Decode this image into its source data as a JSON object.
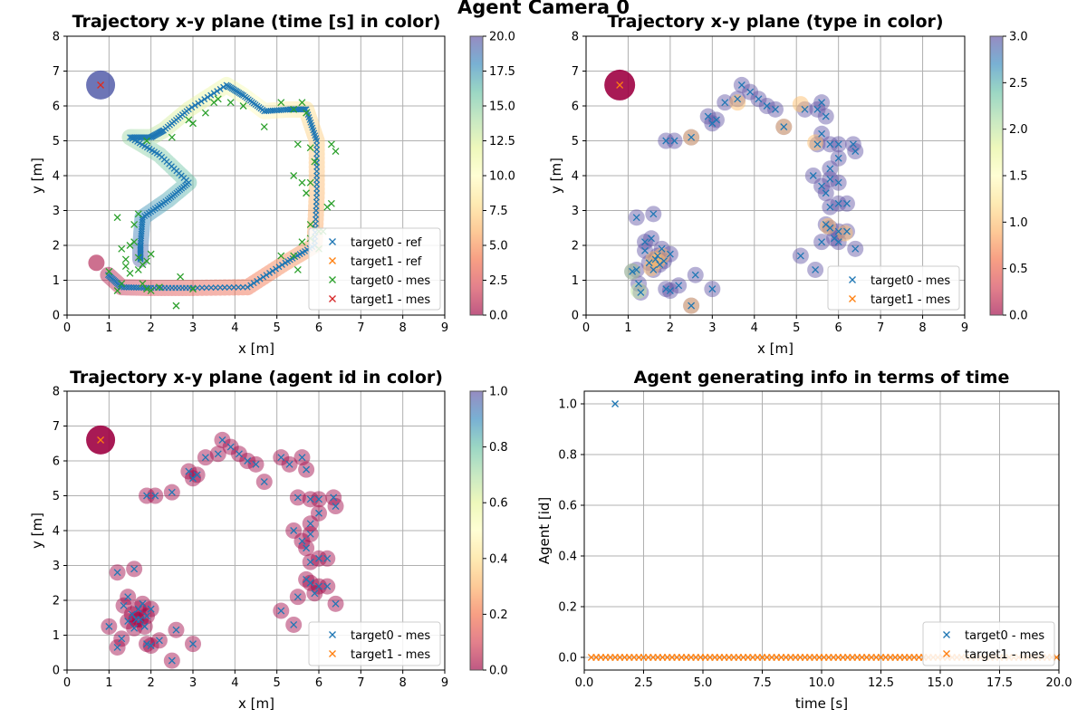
{
  "figure": {
    "title": "Agent Camera 0"
  },
  "colors": {
    "target0": "#1f77b4",
    "target1": "#ff7f0e",
    "target0_mes_p1": "#2ca02c",
    "target1_mes_p1": "#d62728",
    "grid": "#b0b0b0",
    "colormap": "Spectral"
  },
  "chart_data": [
    {
      "id": "p1",
      "type": "scatter",
      "title": "Trajectory x-y plane  (time [s] in color)",
      "xlabel": "x [m]",
      "ylabel": "y [m]",
      "xlim": [
        0,
        9
      ],
      "ylim": [
        0,
        8
      ],
      "xticks": [
        "0",
        "1",
        "2",
        "3",
        "4",
        "5",
        "6",
        "7",
        "8",
        "9"
      ],
      "yticks": [
        "0",
        "1",
        "2",
        "3",
        "4",
        "5",
        "6",
        "7",
        "8"
      ],
      "grid": true,
      "legend_position": "bottom-right",
      "legend": [
        "target0 - ref",
        "target1 - ref",
        "target0 - mes",
        "target1 - mes"
      ],
      "colorbar": {
        "min": 0,
        "max": 20,
        "ticks": [
          "0.0",
          "2.5",
          "5.0",
          "7.5",
          "10.0",
          "12.5",
          "15.0",
          "17.5",
          "20.0"
        ]
      },
      "ref_path_target0": [
        [
          0.98,
          1.15
        ],
        [
          1.3,
          0.8
        ],
        [
          2.0,
          0.78
        ],
        [
          3.0,
          0.78
        ],
        [
          4.3,
          0.8
        ],
        [
          5.2,
          1.5
        ],
        [
          5.9,
          2.0
        ],
        [
          5.95,
          3.5
        ],
        [
          5.95,
          5.0
        ],
        [
          5.7,
          5.9
        ],
        [
          5.3,
          5.9
        ],
        [
          4.7,
          5.85
        ],
        [
          4.2,
          6.3
        ],
        [
          3.8,
          6.6
        ],
        [
          2.9,
          5.9
        ],
        [
          2.3,
          5.3
        ],
        [
          2.0,
          5.1
        ],
        [
          1.5,
          5.1
        ],
        [
          2.2,
          4.6
        ],
        [
          2.9,
          3.8
        ],
        [
          2.4,
          3.3
        ],
        [
          1.8,
          2.8
        ],
        [
          1.75,
          2.0
        ],
        [
          1.75,
          1.6
        ]
      ],
      "target1_ref": {
        "x": 0.8,
        "y": 6.6
      },
      "target0_mes": [
        [
          1.2,
          2.8
        ],
        [
          1.2,
          0.7
        ],
        [
          1.0,
          1.25
        ],
        [
          1.3,
          0.9
        ],
        [
          1.4,
          1.4
        ],
        [
          1.4,
          1.6
        ],
        [
          1.5,
          2.0
        ],
        [
          1.5,
          1.2
        ],
        [
          1.6,
          2.1
        ],
        [
          1.7,
          1.3
        ],
        [
          1.7,
          1.65
        ],
        [
          1.8,
          1.45
        ],
        [
          1.8,
          0.9
        ],
        [
          1.9,
          1.55
        ],
        [
          1.9,
          0.75
        ],
        [
          2.0,
          1.75
        ],
        [
          2.0,
          0.7
        ],
        [
          2.2,
          0.8
        ],
        [
          2.6,
          0.27
        ],
        [
          2.7,
          1.1
        ],
        [
          3.0,
          0.75
        ],
        [
          2.5,
          5.1
        ],
        [
          1.9,
          5.0
        ],
        [
          2.9,
          5.6
        ],
        [
          3.0,
          5.5
        ],
        [
          3.3,
          5.8
        ],
        [
          3.5,
          6.1
        ],
        [
          3.6,
          6.2
        ],
        [
          3.9,
          6.1
        ],
        [
          4.2,
          6.0
        ],
        [
          4.7,
          5.4
        ],
        [
          5.1,
          6.1
        ],
        [
          5.4,
          5.9
        ],
        [
          5.6,
          6.1
        ],
        [
          5.7,
          5.8
        ],
        [
          5.5,
          4.9
        ],
        [
          5.8,
          4.8
        ],
        [
          5.4,
          4.0
        ],
        [
          5.6,
          3.8
        ],
        [
          5.8,
          3.8
        ],
        [
          5.9,
          4.4
        ],
        [
          5.7,
          3.5
        ],
        [
          5.8,
          2.6
        ],
        [
          5.8,
          2.2
        ],
        [
          5.6,
          2.1
        ],
        [
          5.4,
          1.7
        ],
        [
          5.5,
          1.3
        ],
        [
          5.1,
          1.7
        ],
        [
          6.0,
          1.9
        ],
        [
          6.1,
          2.4
        ],
        [
          6.2,
          3.1
        ],
        [
          6.3,
          4.9
        ],
        [
          6.4,
          4.7
        ],
        [
          6.3,
          3.2
        ],
        [
          6.0,
          2.4
        ],
        [
          1.7,
          2.9
        ],
        [
          1.6,
          2.6
        ],
        [
          1.3,
          1.9
        ]
      ],
      "target1_mes": [
        {
          "x": 0.8,
          "y": 6.6
        }
      ],
      "blob_start": {
        "x": 0.7,
        "y": 1.5,
        "t": 0.5
      },
      "blob_end": {
        "x": 0.8,
        "y": 6.6,
        "t": 19.5
      }
    },
    {
      "id": "p2",
      "type": "scatter",
      "title": "Trajectory x-y plane (type in color)",
      "xlabel": "x [m]",
      "ylabel": "y [m]",
      "xlim": [
        0,
        9
      ],
      "ylim": [
        0,
        8
      ],
      "xticks": [
        "0",
        "1",
        "2",
        "3",
        "4",
        "5",
        "6",
        "7",
        "8",
        "9"
      ],
      "yticks": [
        "0",
        "1",
        "2",
        "3",
        "4",
        "5",
        "6",
        "7",
        "8"
      ],
      "grid": true,
      "legend_position": "bottom-right",
      "legend": [
        "target0 - mes",
        "target1 - mes"
      ],
      "colorbar": {
        "min": 0,
        "max": 3,
        "ticks": [
          "0.0",
          "0.5",
          "1.0",
          "1.5",
          "2.0",
          "2.5",
          "3.0"
        ]
      },
      "target0_mes": [
        [
          1.2,
          2.8
        ],
        [
          1.6,
          2.9
        ],
        [
          1.1,
          1.25
        ],
        [
          1.25,
          0.9
        ],
        [
          1.3,
          0.65
        ],
        [
          1.4,
          2.1
        ],
        [
          1.4,
          1.85
        ],
        [
          1.5,
          1.5
        ],
        [
          1.55,
          2.2
        ],
        [
          1.6,
          1.3
        ],
        [
          1.7,
          1.7
        ],
        [
          1.75,
          1.45
        ],
        [
          1.8,
          1.9
        ],
        [
          1.85,
          1.55
        ],
        [
          1.9,
          0.75
        ],
        [
          2.0,
          1.75
        ],
        [
          2.0,
          0.7
        ],
        [
          2.2,
          0.85
        ],
        [
          2.5,
          0.27
        ],
        [
          2.6,
          1.15
        ],
        [
          3.0,
          0.75
        ],
        [
          2.5,
          5.1
        ],
        [
          1.9,
          5.0
        ],
        [
          2.1,
          5.0
        ],
        [
          2.9,
          5.7
        ],
        [
          3.0,
          5.5
        ],
        [
          3.1,
          5.6
        ],
        [
          3.3,
          6.1
        ],
        [
          3.6,
          6.2
        ],
        [
          3.7,
          6.6
        ],
        [
          3.9,
          6.4
        ],
        [
          4.1,
          6.2
        ],
        [
          4.3,
          6.0
        ],
        [
          4.5,
          5.9
        ],
        [
          4.7,
          5.4
        ],
        [
          5.2,
          5.9
        ],
        [
          5.5,
          5.9
        ],
        [
          5.6,
          6.1
        ],
        [
          5.7,
          5.7
        ],
        [
          5.6,
          5.2
        ],
        [
          5.5,
          4.9
        ],
        [
          5.8,
          4.9
        ],
        [
          6.0,
          4.9
        ],
        [
          6.0,
          4.5
        ],
        [
          5.8,
          4.2
        ],
        [
          5.4,
          4.0
        ],
        [
          5.8,
          3.9
        ],
        [
          6.0,
          3.8
        ],
        [
          5.6,
          3.7
        ],
        [
          5.7,
          3.5
        ],
        [
          5.8,
          3.1
        ],
        [
          6.0,
          3.2
        ],
        [
          6.2,
          3.2
        ],
        [
          5.7,
          2.6
        ],
        [
          5.8,
          2.5
        ],
        [
          6.0,
          2.4
        ],
        [
          6.2,
          2.4
        ],
        [
          5.9,
          2.2
        ],
        [
          6.0,
          2.1
        ],
        [
          5.6,
          2.1
        ],
        [
          5.1,
          1.7
        ],
        [
          5.45,
          1.3
        ],
        [
          6.4,
          1.9
        ],
        [
          6.35,
          4.9
        ],
        [
          6.4,
          4.7
        ],
        [
          1.2,
          1.3
        ],
        [
          1.65,
          1.6
        ]
      ],
      "target1_mes": [
        {
          "x": 0.8,
          "y": 6.6
        }
      ],
      "type_dots": [
        {
          "x": 0.8,
          "y": 6.6,
          "v": 0.0,
          "r": 17
        },
        {
          "x": 1.1,
          "y": 1.25,
          "v": 2.0,
          "r": 9
        },
        {
          "x": 1.25,
          "y": 0.7,
          "v": 2.0,
          "r": 9
        },
        {
          "x": 1.55,
          "y": 1.35,
          "v": 1.0,
          "r": 9
        },
        {
          "x": 1.6,
          "y": 1.6,
          "v": 1.0,
          "r": 9
        },
        {
          "x": 1.7,
          "y": 1.55,
          "v": 1.0,
          "r": 9
        },
        {
          "x": 1.8,
          "y": 1.7,
          "v": 1.0,
          "r": 9
        },
        {
          "x": 2.5,
          "y": 5.1,
          "v": 1.0,
          "r": 9
        },
        {
          "x": 2.5,
          "y": 0.27,
          "v": 1.0,
          "r": 9
        },
        {
          "x": 3.6,
          "y": 6.1,
          "v": 1.0,
          "r": 9
        },
        {
          "x": 4.7,
          "y": 5.4,
          "v": 1.0,
          "r": 9
        },
        {
          "x": 5.1,
          "y": 6.05,
          "v": 1.0,
          "r": 9
        },
        {
          "x": 5.45,
          "y": 4.95,
          "v": 1.0,
          "r": 9
        },
        {
          "x": 5.75,
          "y": 2.55,
          "v": 1.0,
          "r": 9
        },
        {
          "x": 6.15,
          "y": 2.35,
          "v": 1.0,
          "r": 9
        }
      ]
    },
    {
      "id": "p3",
      "type": "scatter",
      "title": "Trajectory x-y plane (agent id in color)",
      "xlabel": "x [m]",
      "ylabel": "y [m]",
      "xlim": [
        0,
        9
      ],
      "ylim": [
        0,
        8
      ],
      "xticks": [
        "0",
        "1",
        "2",
        "3",
        "4",
        "5",
        "6",
        "7",
        "8",
        "9"
      ],
      "yticks": [
        "0",
        "1",
        "2",
        "3",
        "4",
        "5",
        "6",
        "7",
        "8"
      ],
      "grid": true,
      "legend_position": "bottom-right",
      "legend": [
        "target0 - mes",
        "target1 - mes"
      ],
      "colorbar": {
        "min": 0,
        "max": 1,
        "ticks": [
          "0.0",
          "0.2",
          "0.4",
          "0.6",
          "0.8",
          "1.0"
        ]
      },
      "target0_mes": [
        [
          1.2,
          2.8
        ],
        [
          1.6,
          2.9
        ],
        [
          1.0,
          1.25
        ],
        [
          1.2,
          0.65
        ],
        [
          1.3,
          0.9
        ],
        [
          1.35,
          1.85
        ],
        [
          1.45,
          2.1
        ],
        [
          1.45,
          1.4
        ],
        [
          1.55,
          1.6
        ],
        [
          1.6,
          1.2
        ],
        [
          1.7,
          1.75
        ],
        [
          1.75,
          1.45
        ],
        [
          1.8,
          1.9
        ],
        [
          1.9,
          1.55
        ],
        [
          1.9,
          0.75
        ],
        [
          2.0,
          1.75
        ],
        [
          2.0,
          0.7
        ],
        [
          2.2,
          0.85
        ],
        [
          2.5,
          0.27
        ],
        [
          2.6,
          1.15
        ],
        [
          3.0,
          0.75
        ],
        [
          2.5,
          5.1
        ],
        [
          1.9,
          5.0
        ],
        [
          2.1,
          5.0
        ],
        [
          2.9,
          5.7
        ],
        [
          3.0,
          5.5
        ],
        [
          3.1,
          5.6
        ],
        [
          3.3,
          6.1
        ],
        [
          3.6,
          6.2
        ],
        [
          3.7,
          6.6
        ],
        [
          3.9,
          6.4
        ],
        [
          4.1,
          6.2
        ],
        [
          4.3,
          6.0
        ],
        [
          4.5,
          5.9
        ],
        [
          4.7,
          5.4
        ],
        [
          5.1,
          6.1
        ],
        [
          5.3,
          5.9
        ],
        [
          5.6,
          6.1
        ],
        [
          5.7,
          5.75
        ],
        [
          5.5,
          4.95
        ],
        [
          5.8,
          4.9
        ],
        [
          6.0,
          4.9
        ],
        [
          6.0,
          4.5
        ],
        [
          5.8,
          4.2
        ],
        [
          5.4,
          4.0
        ],
        [
          5.8,
          3.9
        ],
        [
          5.6,
          3.7
        ],
        [
          5.7,
          3.5
        ],
        [
          5.8,
          3.1
        ],
        [
          6.0,
          3.2
        ],
        [
          6.2,
          3.2
        ],
        [
          5.7,
          2.6
        ],
        [
          5.8,
          2.5
        ],
        [
          6.0,
          2.4
        ],
        [
          6.2,
          2.4
        ],
        [
          5.9,
          2.2
        ],
        [
          5.5,
          2.1
        ],
        [
          5.1,
          1.7
        ],
        [
          5.4,
          1.3
        ],
        [
          6.4,
          1.9
        ],
        [
          6.35,
          4.95
        ],
        [
          6.4,
          4.7
        ],
        [
          1.65,
          1.45
        ],
        [
          1.85,
          1.25
        ]
      ],
      "target1_mes": [
        {
          "x": 0.8,
          "y": 6.6
        }
      ],
      "agent_dot_value": 0.0
    },
    {
      "id": "p4",
      "type": "scatter",
      "title": "Agent generating info in terms of time",
      "xlabel": "time [s]",
      "ylabel": "Agent [id]",
      "xlim": [
        0,
        20
      ],
      "ylim": [
        -0.05,
        1.05
      ],
      "xticks": [
        "0.0",
        "2.5",
        "5.0",
        "7.5",
        "10.0",
        "12.5",
        "15.0",
        "17.5",
        "20.0"
      ],
      "yticks": [
        "0.0",
        "0.2",
        "0.4",
        "0.6",
        "0.8",
        "1.0"
      ],
      "grid": true,
      "legend_position": "bottom-right",
      "legend": [
        "target0 - mes",
        "target1 - mes"
      ],
      "target0_mes": [
        {
          "x": 1.3,
          "y": 1.0
        }
      ],
      "target1_mes": {
        "x_start": 0.3,
        "x_end": 20.0,
        "step": 0.2,
        "y": 0.0
      }
    }
  ]
}
